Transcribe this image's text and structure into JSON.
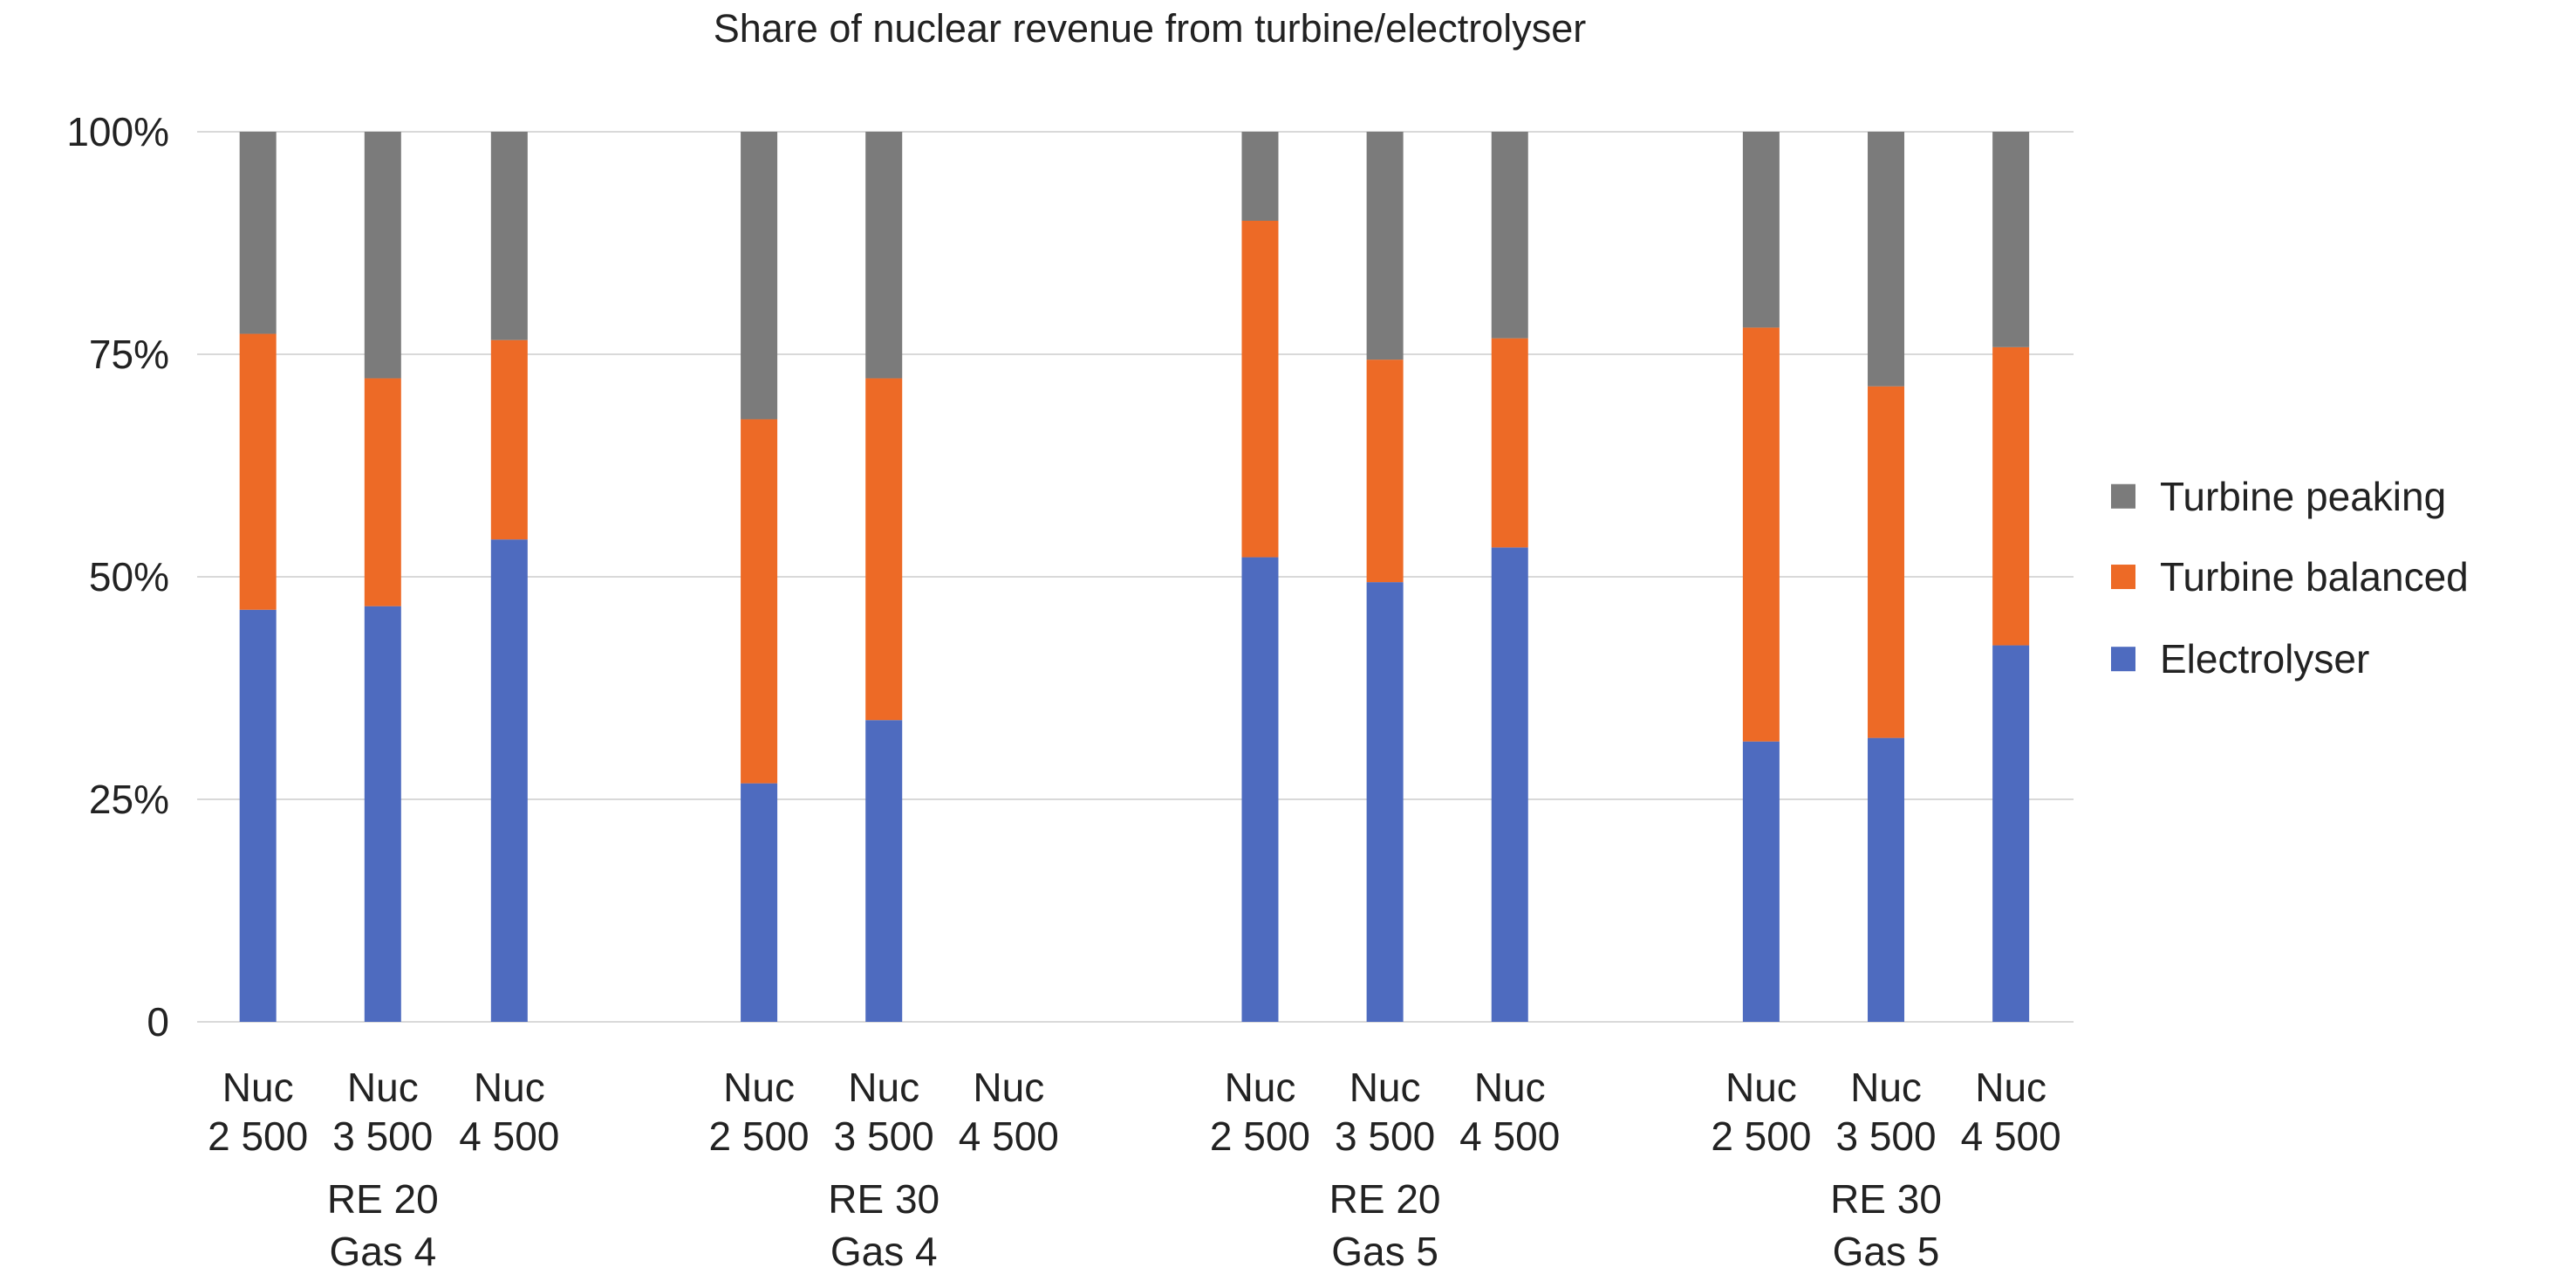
{
  "chart_data": {
    "type": "bar",
    "stacked": true,
    "title": "Share of nuclear revenue from turbine/electrolyser",
    "xlabel": "",
    "ylabel": "",
    "ylim": [
      0,
      100
    ],
    "yticks": [
      0,
      25,
      50,
      75,
      100
    ],
    "ytick_labels": [
      "0",
      "25%",
      "50%",
      "75%",
      "100%"
    ],
    "grid": true,
    "legend_position": "right",
    "groups": [
      {
        "line1": "RE 20",
        "line2": "Gas 4"
      },
      {
        "line1": "RE 30",
        "line2": "Gas 4"
      },
      {
        "line1": "RE 20",
        "line2": "Gas 5"
      },
      {
        "line1": "RE 30",
        "line2": "Gas 5"
      }
    ],
    "categories": [
      {
        "top": "Nuc",
        "bottom": "2 500"
      },
      {
        "top": "Nuc",
        "bottom": "3 500"
      },
      {
        "top": "Nuc",
        "bottom": "4 500"
      },
      {
        "top": "Nuc",
        "bottom": "2 500"
      },
      {
        "top": "Nuc",
        "bottom": "3 500"
      },
      {
        "top": "Nuc",
        "bottom": "4 500"
      },
      {
        "top": "Nuc",
        "bottom": "2 500"
      },
      {
        "top": "Nuc",
        "bottom": "3 500"
      },
      {
        "top": "Nuc",
        "bottom": "4 500"
      },
      {
        "top": "Nuc",
        "bottom": "2 500"
      },
      {
        "top": "Nuc",
        "bottom": "3 500"
      },
      {
        "top": "Nuc",
        "bottom": "4 500"
      }
    ],
    "series": [
      {
        "name": "Electrolyser",
        "color": "#4e6bbf",
        "values": [
          46.3,
          46.7,
          54.2,
          26.8,
          33.9,
          0,
          52.2,
          49.4,
          53.3,
          31.5,
          31.9,
          42.3
        ]
      },
      {
        "name": "Turbine balanced",
        "color": "#ed6a26",
        "values": [
          31.0,
          25.6,
          22.4,
          40.9,
          38.4,
          0,
          37.8,
          25.0,
          23.5,
          46.5,
          39.5,
          33.5
        ]
      },
      {
        "name": "Turbine peaking",
        "color": "#7b7b7b",
        "values": [
          22.7,
          27.7,
          23.4,
          32.3,
          27.7,
          0,
          10.0,
          25.6,
          23.2,
          22.0,
          28.6,
          24.2
        ]
      }
    ],
    "legend_order": [
      "Turbine peaking",
      "Turbine balanced",
      "Electrolyser"
    ]
  }
}
